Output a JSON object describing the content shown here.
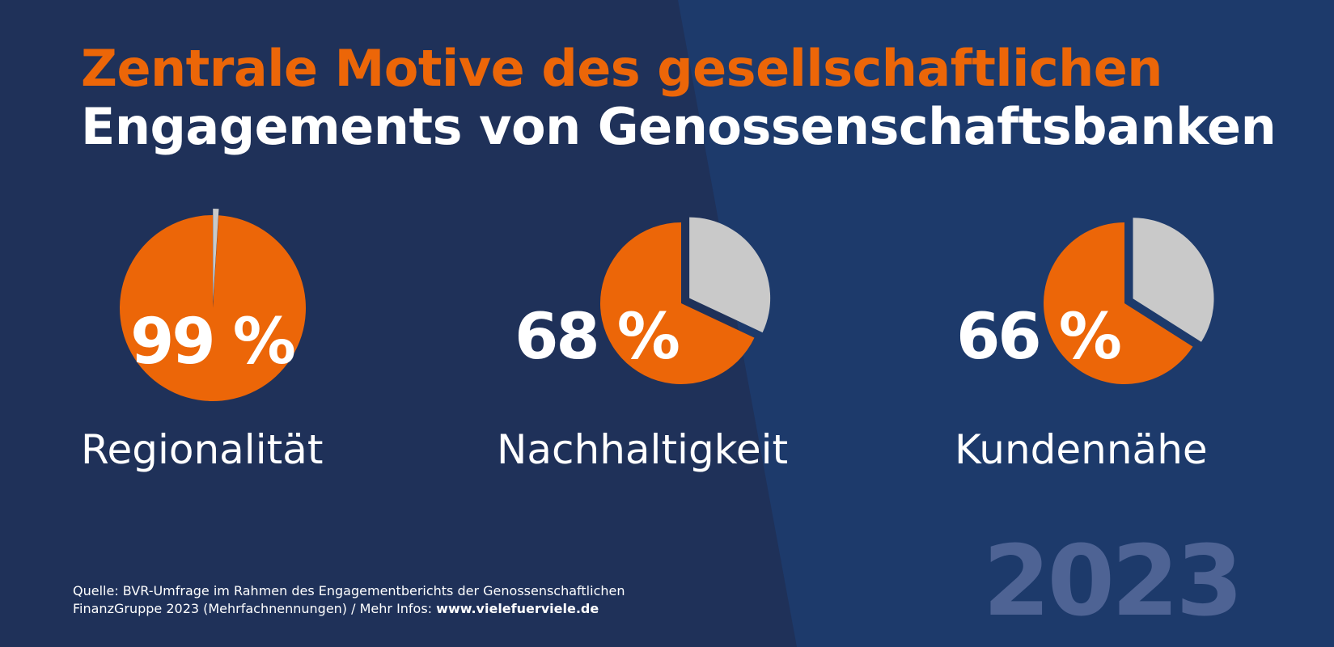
{
  "title": {
    "line1": "Zentrale Motive des gesellschaftlichen",
    "line2": "Engagements von Genossenschaftsbanken"
  },
  "colors": {
    "background_left": "#1f3159",
    "background_right": "#1d3a6b",
    "accent": "#ec6608",
    "rest": "#c9c9c9",
    "year": "#4e6394"
  },
  "chart_data": {
    "type": "pie",
    "title": "Zentrale Motive des gesellschaftlichen Engagements von Genossenschaftsbanken",
    "unit": "%",
    "items": [
      {
        "label": "Regionalität",
        "value": 99,
        "value_label": "99 %"
      },
      {
        "label": "Nachhaltigkeit",
        "value": 68,
        "value_label": "68 %"
      },
      {
        "label": "Kundennähe",
        "value": 66,
        "value_label": "66 %"
      }
    ]
  },
  "year": "2023",
  "source": {
    "line1": "Quelle: BVR-Umfrage im Rahmen des Engagementberichts der Genossenschaftlichen",
    "line2": "FinanzGruppe 2023 (Mehrfachnennungen) / Mehr Infos: ",
    "link": "www.vielefuerviele.de"
  }
}
